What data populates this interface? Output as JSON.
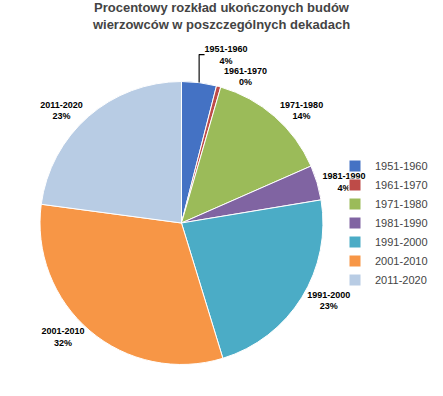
{
  "chart_data": {
    "type": "pie",
    "title": "Procentowy rozkład ukończonych budów\nwierzowców w poszczególnych dekadach",
    "categories": [
      "1951-1960",
      "1961-1970",
      "1971-1980",
      "1981-1990",
      "1991-2000",
      "2001-2010",
      "2011-2020"
    ],
    "values": [
      4,
      0.5,
      14,
      4,
      23,
      32,
      23
    ],
    "value_labels": [
      "4%",
      "0%",
      "14%",
      "4%",
      "23%",
      "32%",
      "23%"
    ],
    "colors": [
      "#4472C4",
      "#BE4B48",
      "#9BBB59",
      "#8064A2",
      "#4BACC6",
      "#F79646",
      "#B8CCE4"
    ],
    "data_labels": true,
    "legend": "right"
  }
}
